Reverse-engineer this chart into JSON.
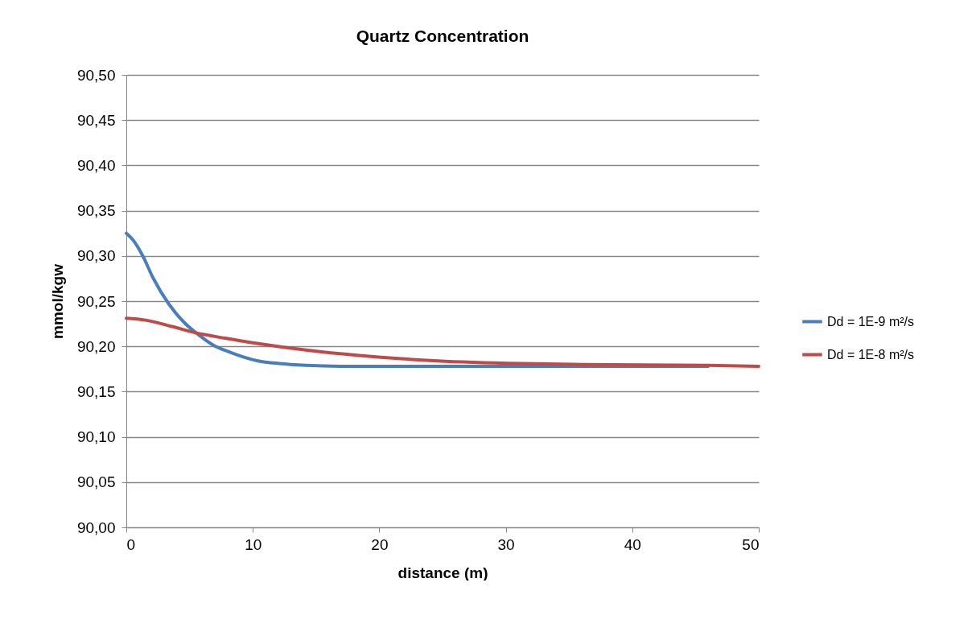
{
  "chart_data": {
    "type": "line",
    "title": "Quartz Concentration",
    "xlabel": "distance (m)",
    "ylabel": "mmol/kgw",
    "xlim": [
      0,
      50
    ],
    "xticks": [
      0,
      10,
      20,
      30,
      40,
      50
    ],
    "ylim": [
      90,
      90.5
    ],
    "yticks": [
      {
        "value": 90,
        "label": "90,00"
      },
      {
        "value": 90.05,
        "label": "90,05"
      },
      {
        "value": 90.1,
        "label": "90,10"
      },
      {
        "value": 90.15,
        "label": "90,15"
      },
      {
        "value": 90.2,
        "label": "90,20"
      },
      {
        "value": 90.25,
        "label": "90,25"
      },
      {
        "value": 90.3,
        "label": "90,30"
      },
      {
        "value": 90.35,
        "label": "90,35"
      },
      {
        "value": 90.4,
        "label": "90,40"
      },
      {
        "value": 90.45,
        "label": "90,45"
      },
      {
        "value": 90.5,
        "label": "90,50"
      }
    ],
    "grid": "y",
    "legend": "right",
    "marker": "none",
    "line_style": "solid",
    "series": [
      {
        "name": "Dd = 1E-9 m²/s",
        "color": "#4a7ebb",
        "x": [
          0,
          0.5,
          1.3,
          2.1,
          3.4,
          4.6,
          5.7,
          6.8,
          8.3,
          10.4,
          12.1,
          14.2,
          17,
          20,
          30,
          40,
          46
        ],
        "values": [
          90.325,
          90.318,
          90.3,
          90.276,
          90.246,
          90.226,
          90.213,
          90.202,
          90.193,
          90.184,
          90.181,
          90.179,
          90.178,
          90.178,
          90.178,
          90.178,
          90.178
        ]
      },
      {
        "name": "Dd = 1E-8 m²/s",
        "color": "#be4b48",
        "x": [
          0,
          1.5,
          3.6,
          5.5,
          7.8,
          10,
          14.2,
          18.4,
          24.6,
          31.2,
          36,
          46,
          50
        ],
        "values": [
          90.231,
          90.229,
          90.222,
          90.215,
          90.209,
          90.204,
          90.196,
          90.19,
          90.184,
          90.181,
          90.18,
          90.179,
          90.178
        ]
      }
    ]
  }
}
